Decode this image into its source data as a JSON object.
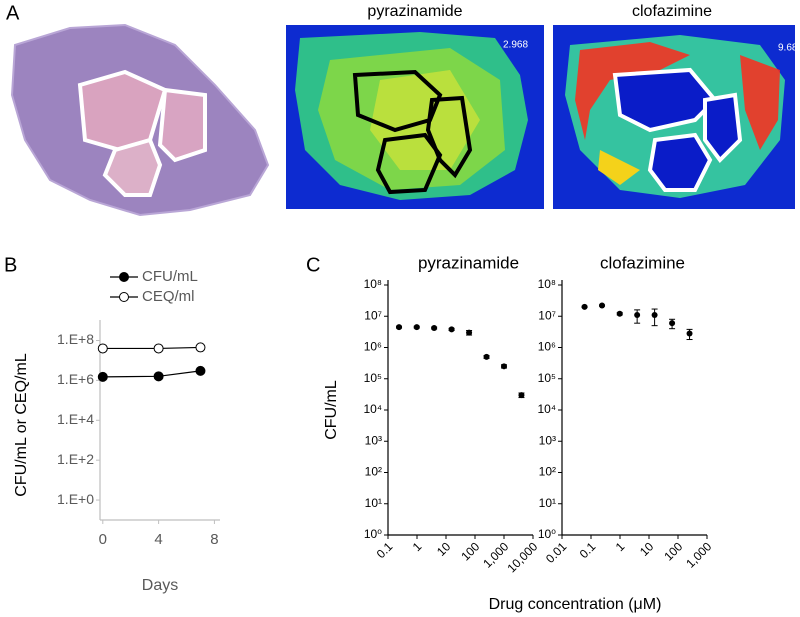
{
  "panels": {
    "labels": [
      "A",
      "B",
      "C"
    ],
    "images": [
      {
        "title": "pyrazinamide",
        "scale_label": "2.968"
      },
      {
        "title": "clofazimine",
        "scale_label": "9.68"
      }
    ]
  },
  "chart_data": [
    {
      "type": "line",
      "x": [
        0,
        4,
        7
      ],
      "xlim": [
        -0.2,
        8.4
      ],
      "xticks": [
        0,
        4,
        8
      ],
      "xlabel": "Days",
      "ylabel": "CFU/mL or CEQ/mL",
      "log_y": true,
      "ylim": [
        0.1,
        600000000
      ],
      "yticks": [
        {
          "value": 1,
          "label": "1.E+0"
        },
        {
          "value": 100,
          "label": "1.E+2"
        },
        {
          "value": 10000,
          "label": "1.E+4"
        },
        {
          "value": 1000000,
          "label": "1.E+6"
        },
        {
          "value": 100000000,
          "label": "1.E+8"
        }
      ],
      "axis_color": "#bfbfbf",
      "legend": "top",
      "series": [
        {
          "name": "CFU/mL",
          "color": "#000000",
          "marker": "filled",
          "values": [
            1500000,
            1600000,
            3000000
          ]
        },
        {
          "name": "CEQ/ml",
          "color": "#000000",
          "marker": "open",
          "values": [
            40000000,
            40000000,
            45000000
          ]
        }
      ]
    },
    {
      "type": "scatter",
      "title": "pyrazinamide",
      "ylabel": "CFU/mL",
      "xlabel": "Drug concentration (μM)",
      "log_x": true,
      "log_y": true,
      "xlim": [
        0.1,
        10000
      ],
      "ylim": [
        1,
        100000000
      ],
      "xticks": [
        0.1,
        1,
        10,
        100,
        {
          "value": 1000,
          "label": "1,000"
        },
        {
          "value": 10000,
          "label": "10,000"
        }
      ],
      "yticks": [
        {
          "value": 1,
          "label": "10⁰"
        },
        {
          "value": 10,
          "label": "10¹"
        },
        {
          "value": 100,
          "label": "10²"
        },
        {
          "value": 1000,
          "label": "10³"
        },
        {
          "value": 10000,
          "label": "10⁴"
        },
        {
          "value": 100000,
          "label": "10⁵"
        },
        {
          "value": 1000000,
          "label": "10⁶"
        },
        {
          "value": 10000000,
          "label": "10⁷"
        },
        {
          "value": 100000000,
          "label": "10⁸"
        }
      ],
      "axis_color": "#000000",
      "color": "#000000",
      "x": [
        0.24,
        0.98,
        3.9,
        15.6,
        62.5,
        250,
        1000,
        4000
      ],
      "values": [
        4500000,
        4500000,
        4200000,
        3800000,
        3000000,
        500000,
        250000,
        30000
      ],
      "errors": [
        300000,
        300000,
        300000,
        300000,
        500000,
        50000,
        30000,
        5000
      ]
    },
    {
      "type": "scatter",
      "title": "clofazimine",
      "log_x": true,
      "log_y": true,
      "xlim": [
        0.01,
        1000
      ],
      "ylim": [
        1,
        100000000
      ],
      "xticks": [
        0.01,
        0.1,
        1,
        10,
        100,
        {
          "value": 1000,
          "label": "1,000"
        }
      ],
      "yticks": [
        {
          "value": 1,
          "label": "10⁰"
        },
        {
          "value": 10,
          "label": "10¹"
        },
        {
          "value": 100,
          "label": "10²"
        },
        {
          "value": 1000,
          "label": "10³"
        },
        {
          "value": 10000,
          "label": "10⁴"
        },
        {
          "value": 100000,
          "label": "10⁵"
        },
        {
          "value": 1000000,
          "label": "10⁶"
        },
        {
          "value": 10000000,
          "label": "10⁷"
        },
        {
          "value": 100000000,
          "label": "10⁸"
        }
      ],
      "axis_color": "#000000",
      "color": "#000000",
      "x": [
        0.06,
        0.24,
        0.98,
        3.9,
        15.6,
        62.5,
        250
      ],
      "values": [
        20000000,
        22000000,
        12000000,
        11000000,
        11000000,
        6000000,
        2800000
      ],
      "errors": [
        1000000,
        1000000,
        1000000,
        5000000,
        6000000,
        2000000,
        1000000
      ]
    }
  ]
}
